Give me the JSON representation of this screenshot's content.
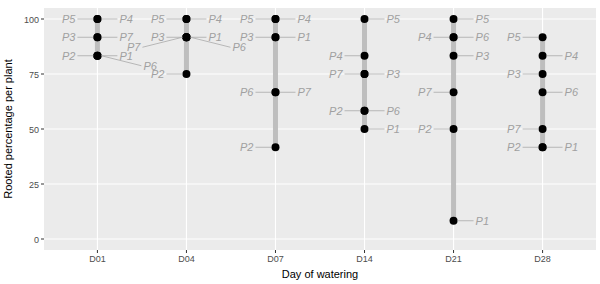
{
  "chart_data": {
    "type": "scatter",
    "x_label": "Day of watering",
    "y_label": "Rooted percentage per plant",
    "categories": [
      "D01",
      "D04",
      "D07",
      "D14",
      "D21",
      "D28"
    ],
    "series": [
      {
        "name": "P1",
        "color": "#000000",
        "values": [
          83.3,
          91.7,
          91.7,
          50,
          8.3,
          41.7
        ]
      },
      {
        "name": "P2",
        "color": "#000000",
        "values": [
          83.3,
          75,
          41.7,
          58.3,
          50,
          41.7
        ]
      },
      {
        "name": "P3",
        "color": "#000000",
        "values": [
          91.7,
          91.7,
          91.7,
          75,
          83.3,
          75
        ]
      },
      {
        "name": "P4",
        "color": "#000000",
        "values": [
          100,
          100,
          100,
          83.3,
          91.7,
          83.3
        ]
      },
      {
        "name": "P5",
        "color": "#000000",
        "values": [
          100,
          100,
          100,
          100,
          100,
          91.7
        ]
      },
      {
        "name": "P6",
        "color": "#000000",
        "values": [
          83.3,
          91.7,
          66.7,
          58.3,
          91.7,
          66.7
        ]
      },
      {
        "name": "P7",
        "color": "#000000",
        "values": [
          91.7,
          91.7,
          66.7,
          75,
          66.7,
          50
        ]
      }
    ],
    "ylim": [
      -5,
      105
    ],
    "yticks": [
      0,
      25,
      50,
      75,
      100
    ],
    "grid": true,
    "marker": "circle"
  }
}
